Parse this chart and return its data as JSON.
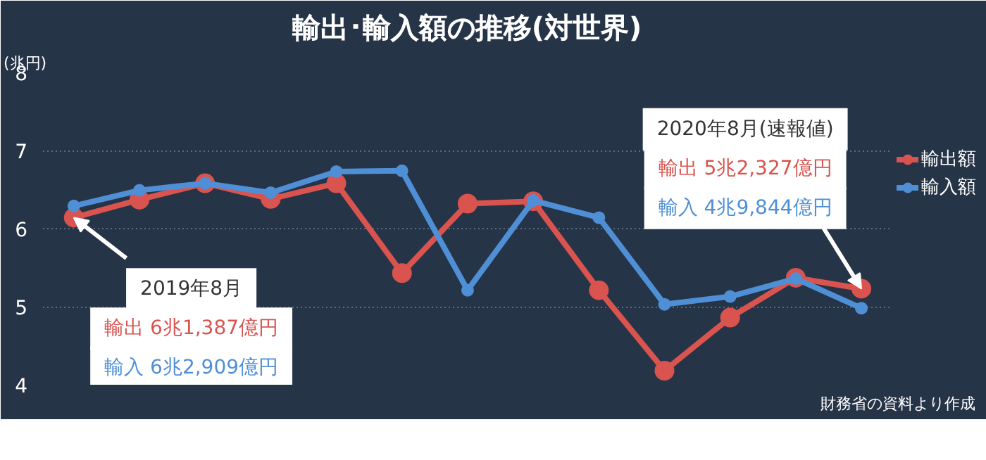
{
  "chart_data": {
    "type": "line",
    "title": "輸出･輸入額の推移(対世界)",
    "ylabel": "(兆円)",
    "categories": [
      null,
      null,
      null,
      null,
      null,
      null,
      null,
      null,
      null,
      null,
      null,
      null,
      null
    ],
    "series": [
      {
        "name": "輸出額",
        "color": "#d9534f",
        "values": [
          6.14,
          6.37,
          6.58,
          6.38,
          6.58,
          5.43,
          6.32,
          6.35,
          5.21,
          4.18,
          4.86,
          5.37,
          5.23
        ]
      },
      {
        "name": "輸入額",
        "color": "#4f8fd6",
        "values": [
          6.29,
          6.49,
          6.58,
          6.46,
          6.73,
          6.74,
          5.21,
          6.36,
          6.14,
          5.03,
          5.13,
          5.36,
          4.98
        ]
      }
    ],
    "ylim": [
      4,
      8
    ],
    "yticks": [
      4,
      5,
      6,
      7,
      8
    ],
    "grid": "y",
    "legend": "right",
    "marker": "circle",
    "line_style": "solid",
    "tick_labels": "y",
    "annotations": [
      "2019年8月",
      "輸出 6兆1,387億円",
      "輸入 6兆2,909億円",
      "2020年8月(速報値)",
      "輸出 5兆2,327億円",
      "輸入 4兆9,844億円",
      "財務省の資料より作成"
    ]
  }
}
